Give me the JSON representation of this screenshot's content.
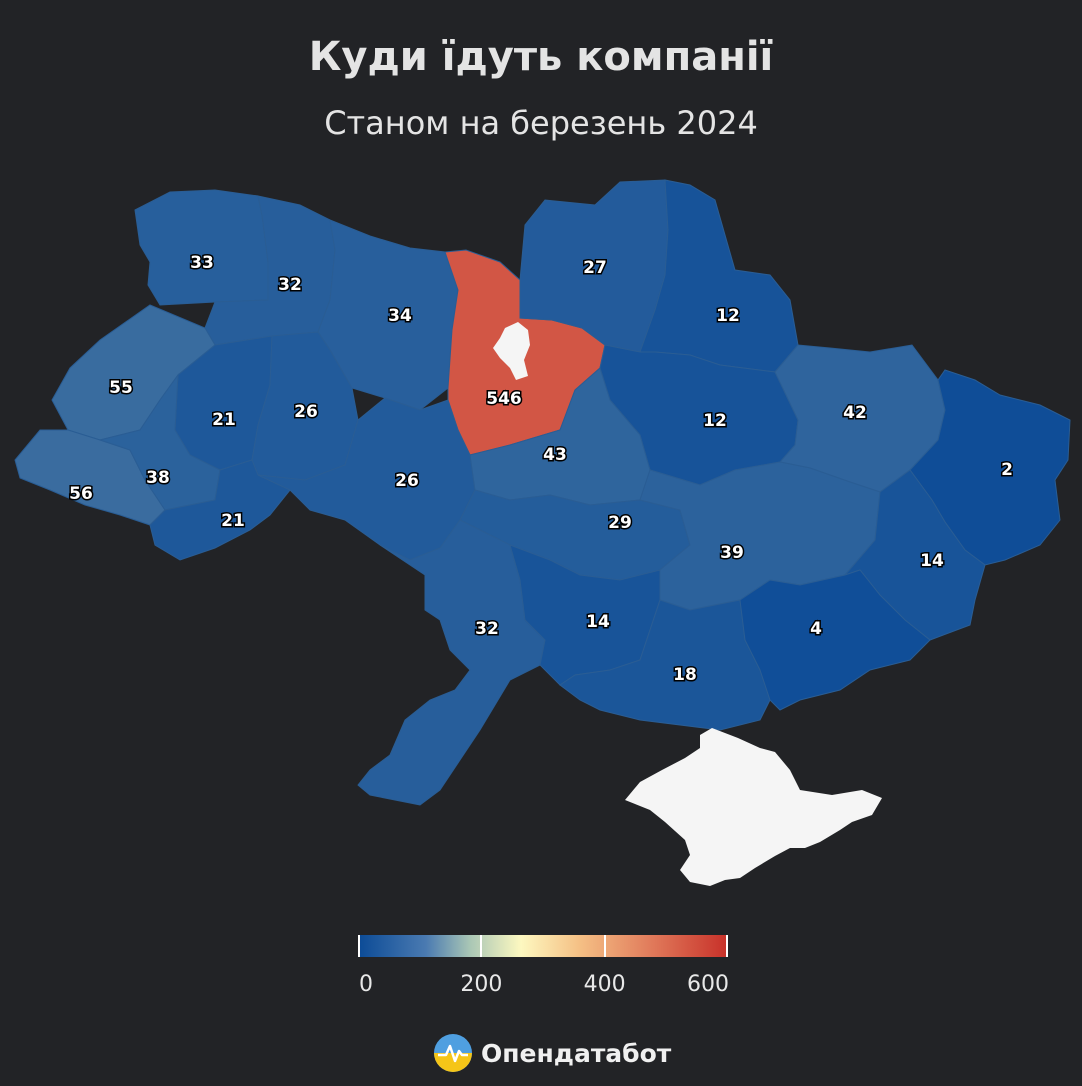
{
  "header": {
    "title": "Куди їдуть компанії",
    "subtitle": "Станом на березень 2024"
  },
  "map_data": {
    "type": "choropleth",
    "regions": [
      {
        "name": "Волинська",
        "value": 33
      },
      {
        "name": "Рівненська",
        "value": 32
      },
      {
        "name": "Житомирська",
        "value": 34
      },
      {
        "name": "Київська",
        "value": 546
      },
      {
        "name": "Чернігівська",
        "value": 27
      },
      {
        "name": "Сумська",
        "value": 12
      },
      {
        "name": "Львівська",
        "value": 55
      },
      {
        "name": "Тернопільська",
        "value": 21
      },
      {
        "name": "Хмельницька",
        "value": 26
      },
      {
        "name": "Полтавська",
        "value": 12
      },
      {
        "name": "Харківська",
        "value": 42
      },
      {
        "name": "Луганська",
        "value": 2
      },
      {
        "name": "Закарпатська",
        "value": 56
      },
      {
        "name": "Івано-Франківська",
        "value": 38
      },
      {
        "name": "Чернівецька",
        "value": 21
      },
      {
        "name": "Вінницька",
        "value": 26
      },
      {
        "name": "Черкаська",
        "value": 43
      },
      {
        "name": "Кіровоградська",
        "value": 29
      },
      {
        "name": "Дніпропетровська",
        "value": 39
      },
      {
        "name": "Донецька",
        "value": 14
      },
      {
        "name": "Одеська",
        "value": 32
      },
      {
        "name": "Миколаївська",
        "value": 14
      },
      {
        "name": "Херсонська",
        "value": 18
      },
      {
        "name": "Запорізька",
        "value": 4
      }
    ],
    "colors": {
      "low": "#0d4c97",
      "mid": "#fdf8c0",
      "high": "#c8322a",
      "no_data": "#f5f5f5",
      "background": "#222326"
    }
  },
  "legend": {
    "range": [
      0,
      600
    ],
    "labels": [
      "0",
      "200",
      "400",
      "600"
    ]
  },
  "brand": {
    "name": "Опендатабот",
    "icon": "opendatabot-logo-icon"
  }
}
